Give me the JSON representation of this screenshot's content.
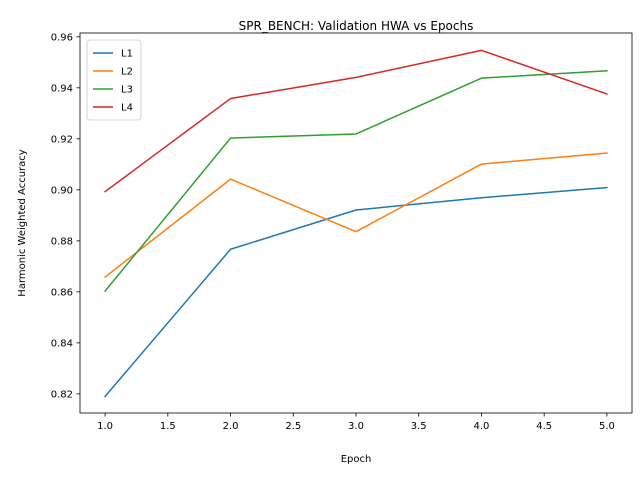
{
  "chart_data": {
    "type": "line",
    "title": "SPR_BENCH: Validation HWA vs Epochs",
    "xlabel": "Epoch",
    "ylabel": "Harmonic Weighted Accuracy",
    "xlim": [
      0.8,
      5.2
    ],
    "ylim": [
      0.8125,
      0.9615
    ],
    "xticks": [
      1.0,
      1.5,
      2.0,
      2.5,
      3.0,
      3.5,
      4.0,
      4.5,
      5.0
    ],
    "xtick_labels": [
      "1.0",
      "1.5",
      "2.0",
      "2.5",
      "3.0",
      "3.5",
      "4.0",
      "4.5",
      "5.0"
    ],
    "yticks": [
      0.82,
      0.84,
      0.86,
      0.88,
      0.9,
      0.92,
      0.94,
      0.96
    ],
    "ytick_labels": [
      "0.82",
      "0.84",
      "0.86",
      "0.88",
      "0.90",
      "0.92",
      "0.94",
      "0.96"
    ],
    "grid": false,
    "legend_position": "top-left",
    "x": [
      1,
      2,
      3,
      4,
      5
    ],
    "series": [
      {
        "name": "L1",
        "color": "#1f77b4",
        "values": [
          0.819,
          0.8767,
          0.8921,
          0.8969,
          0.9009
        ]
      },
      {
        "name": "L2",
        "color": "#ff7f0e",
        "values": [
          0.8658,
          0.9042,
          0.8836,
          0.9101,
          0.9144
        ]
      },
      {
        "name": "L3",
        "color": "#2ca02c",
        "values": [
          0.8603,
          0.9203,
          0.9219,
          0.9438,
          0.9467
        ]
      },
      {
        "name": "L4",
        "color": "#d62728",
        "values": [
          0.8993,
          0.9358,
          0.9441,
          0.9547,
          0.9376
        ]
      }
    ]
  }
}
